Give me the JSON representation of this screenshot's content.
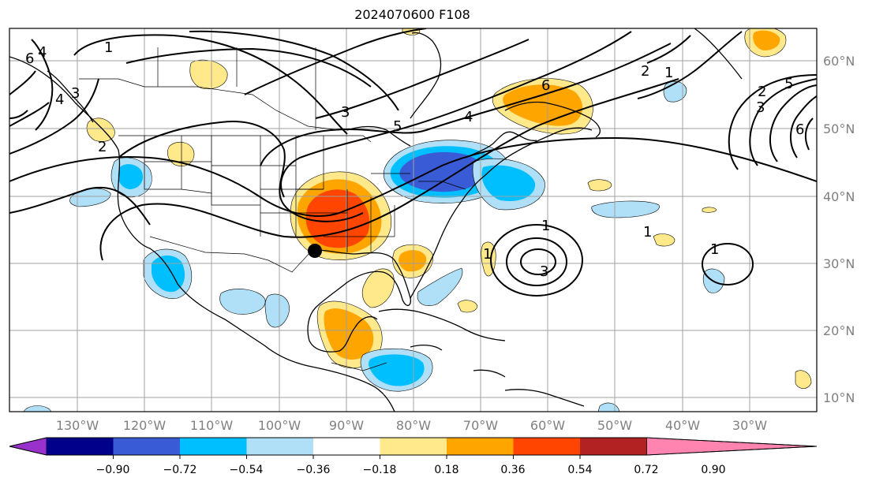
{
  "title": "2024070600 F108",
  "lat_labels": [
    "60°N",
    "50°N",
    "40°N",
    "30°N",
    "20°N",
    "10°N"
  ],
  "lon_labels": [
    "130°W",
    "120°W",
    "110°W",
    "100°W",
    "90°W",
    "80°W",
    "70°W",
    "60°W",
    "50°W",
    "40°W",
    "30°W"
  ],
  "colorbar": {
    "labels": [
      "−0.90",
      "−0.72",
      "−0.54",
      "−0.36",
      "−0.18",
      "0.18",
      "0.36",
      "0.54",
      "0.72",
      "0.90"
    ],
    "colors": [
      "#9932cc",
      "#00008b",
      "#3a5bd6",
      "#00bfff",
      "#b0e0f8",
      "#ffffff",
      "#ffe98a",
      "#ffa500",
      "#ff4500",
      "#b22222",
      "#ff85b0"
    ]
  },
  "contour_labels": [
    "1",
    "2",
    "3",
    "4",
    "5",
    "6"
  ],
  "marker": "site-marker"
}
